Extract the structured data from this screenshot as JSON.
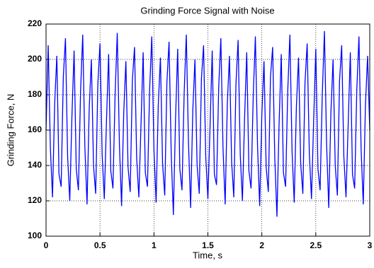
{
  "chart_data": {
    "type": "line",
    "title": "Grinding Force Signal with Noise",
    "xlabel": "Time, s",
    "ylabel": "Grinding Force, N",
    "x": [
      0,
      0.02,
      0.04,
      0.06,
      0.08,
      0.1,
      0.12,
      0.14,
      0.16,
      0.18,
      0.2,
      0.22,
      0.24,
      0.26,
      0.28,
      0.3,
      0.32,
      0.34,
      0.36,
      0.38,
      0.4,
      0.42,
      0.44,
      0.46,
      0.48,
      0.5,
      0.52,
      0.54,
      0.56,
      0.58,
      0.6,
      0.62,
      0.64,
      0.66,
      0.68,
      0.7,
      0.72,
      0.74,
      0.76,
      0.78,
      0.8,
      0.82,
      0.84,
      0.86,
      0.88,
      0.9,
      0.92,
      0.94,
      0.96,
      0.98,
      1,
      1.02,
      1.04,
      1.06,
      1.08,
      1.1,
      1.12,
      1.14,
      1.16,
      1.18,
      1.2,
      1.22,
      1.24,
      1.26,
      1.28,
      1.3,
      1.32,
      1.34,
      1.36,
      1.38,
      1.4,
      1.42,
      1.44,
      1.46,
      1.48,
      1.5,
      1.52,
      1.54,
      1.56,
      1.58,
      1.6,
      1.62,
      1.64,
      1.66,
      1.68,
      1.7,
      1.72,
      1.74,
      1.76,
      1.78,
      1.8,
      1.82,
      1.84,
      1.86,
      1.88,
      1.9,
      1.92,
      1.94,
      1.96,
      1.98,
      2,
      2.02,
      2.04,
      2.06,
      2.08,
      2.1,
      2.12,
      2.14,
      2.16,
      2.18,
      2.2,
      2.22,
      2.24,
      2.26,
      2.28,
      2.3,
      2.32,
      2.34,
      2.36,
      2.38,
      2.4,
      2.42,
      2.44,
      2.46,
      2.48,
      2.5,
      2.52,
      2.54,
      2.56,
      2.58,
      2.6,
      2.62,
      2.64,
      2.66,
      2.68,
      2.7,
      2.72,
      2.74,
      2.76,
      2.78,
      2.8,
      2.82,
      2.84,
      2.86,
      2.88,
      2.9,
      2.92,
      2.94,
      2.96,
      2.98,
      3
    ],
    "series": [
      {
        "color": "#0000ff",
        "values": [
          160,
          208,
          150,
          122,
          175,
          202,
          135,
          128,
          190,
          212,
          145,
          120,
          168,
          205,
          138,
          126,
          182,
          214,
          150,
          118,
          172,
          200,
          140,
          124,
          186,
          209,
          146,
          121,
          165,
          203,
          137,
          127,
          180,
          215,
          152,
          117,
          170,
          199,
          139,
          125,
          188,
          207,
          144,
          122,
          163,
          204,
          136,
          128,
          183,
          213,
          149,
          119,
          174,
          201,
          141,
          123,
          187,
          210,
          147,
          112,
          166,
          206,
          138,
          126,
          181,
          214,
          153,
          116,
          171,
          200,
          140,
          124,
          189,
          208,
          145,
          121,
          162,
          205,
          135,
          129,
          184,
          212,
          150,
          118,
          175,
          202,
          142,
          122,
          186,
          211,
          146,
          120,
          167,
          204,
          137,
          127,
          179,
          213,
          151,
          117,
          169,
          199,
          139,
          125,
          190,
          207,
          144,
          111,
          164,
          203,
          136,
          128,
          182,
          214,
          148,
          119,
          173,
          201,
          141,
          124,
          187,
          209,
          147,
          121,
          165,
          206,
          138,
          126,
          180,
          216,
          152,
          116,
          170,
          200,
          140,
          123,
          188,
          208,
          145,
          122,
          163,
          204,
          135,
          127,
          183,
          213,
          149,
          118,
          174,
          202,
          160
        ]
      }
    ],
    "xlim": [
      0,
      3
    ],
    "ylim": [
      100,
      220
    ],
    "xticks": [
      0,
      0.5,
      1,
      1.5,
      2,
      2.5,
      3
    ],
    "yticks": [
      100,
      120,
      140,
      160,
      180,
      200,
      220
    ],
    "grid": true
  }
}
